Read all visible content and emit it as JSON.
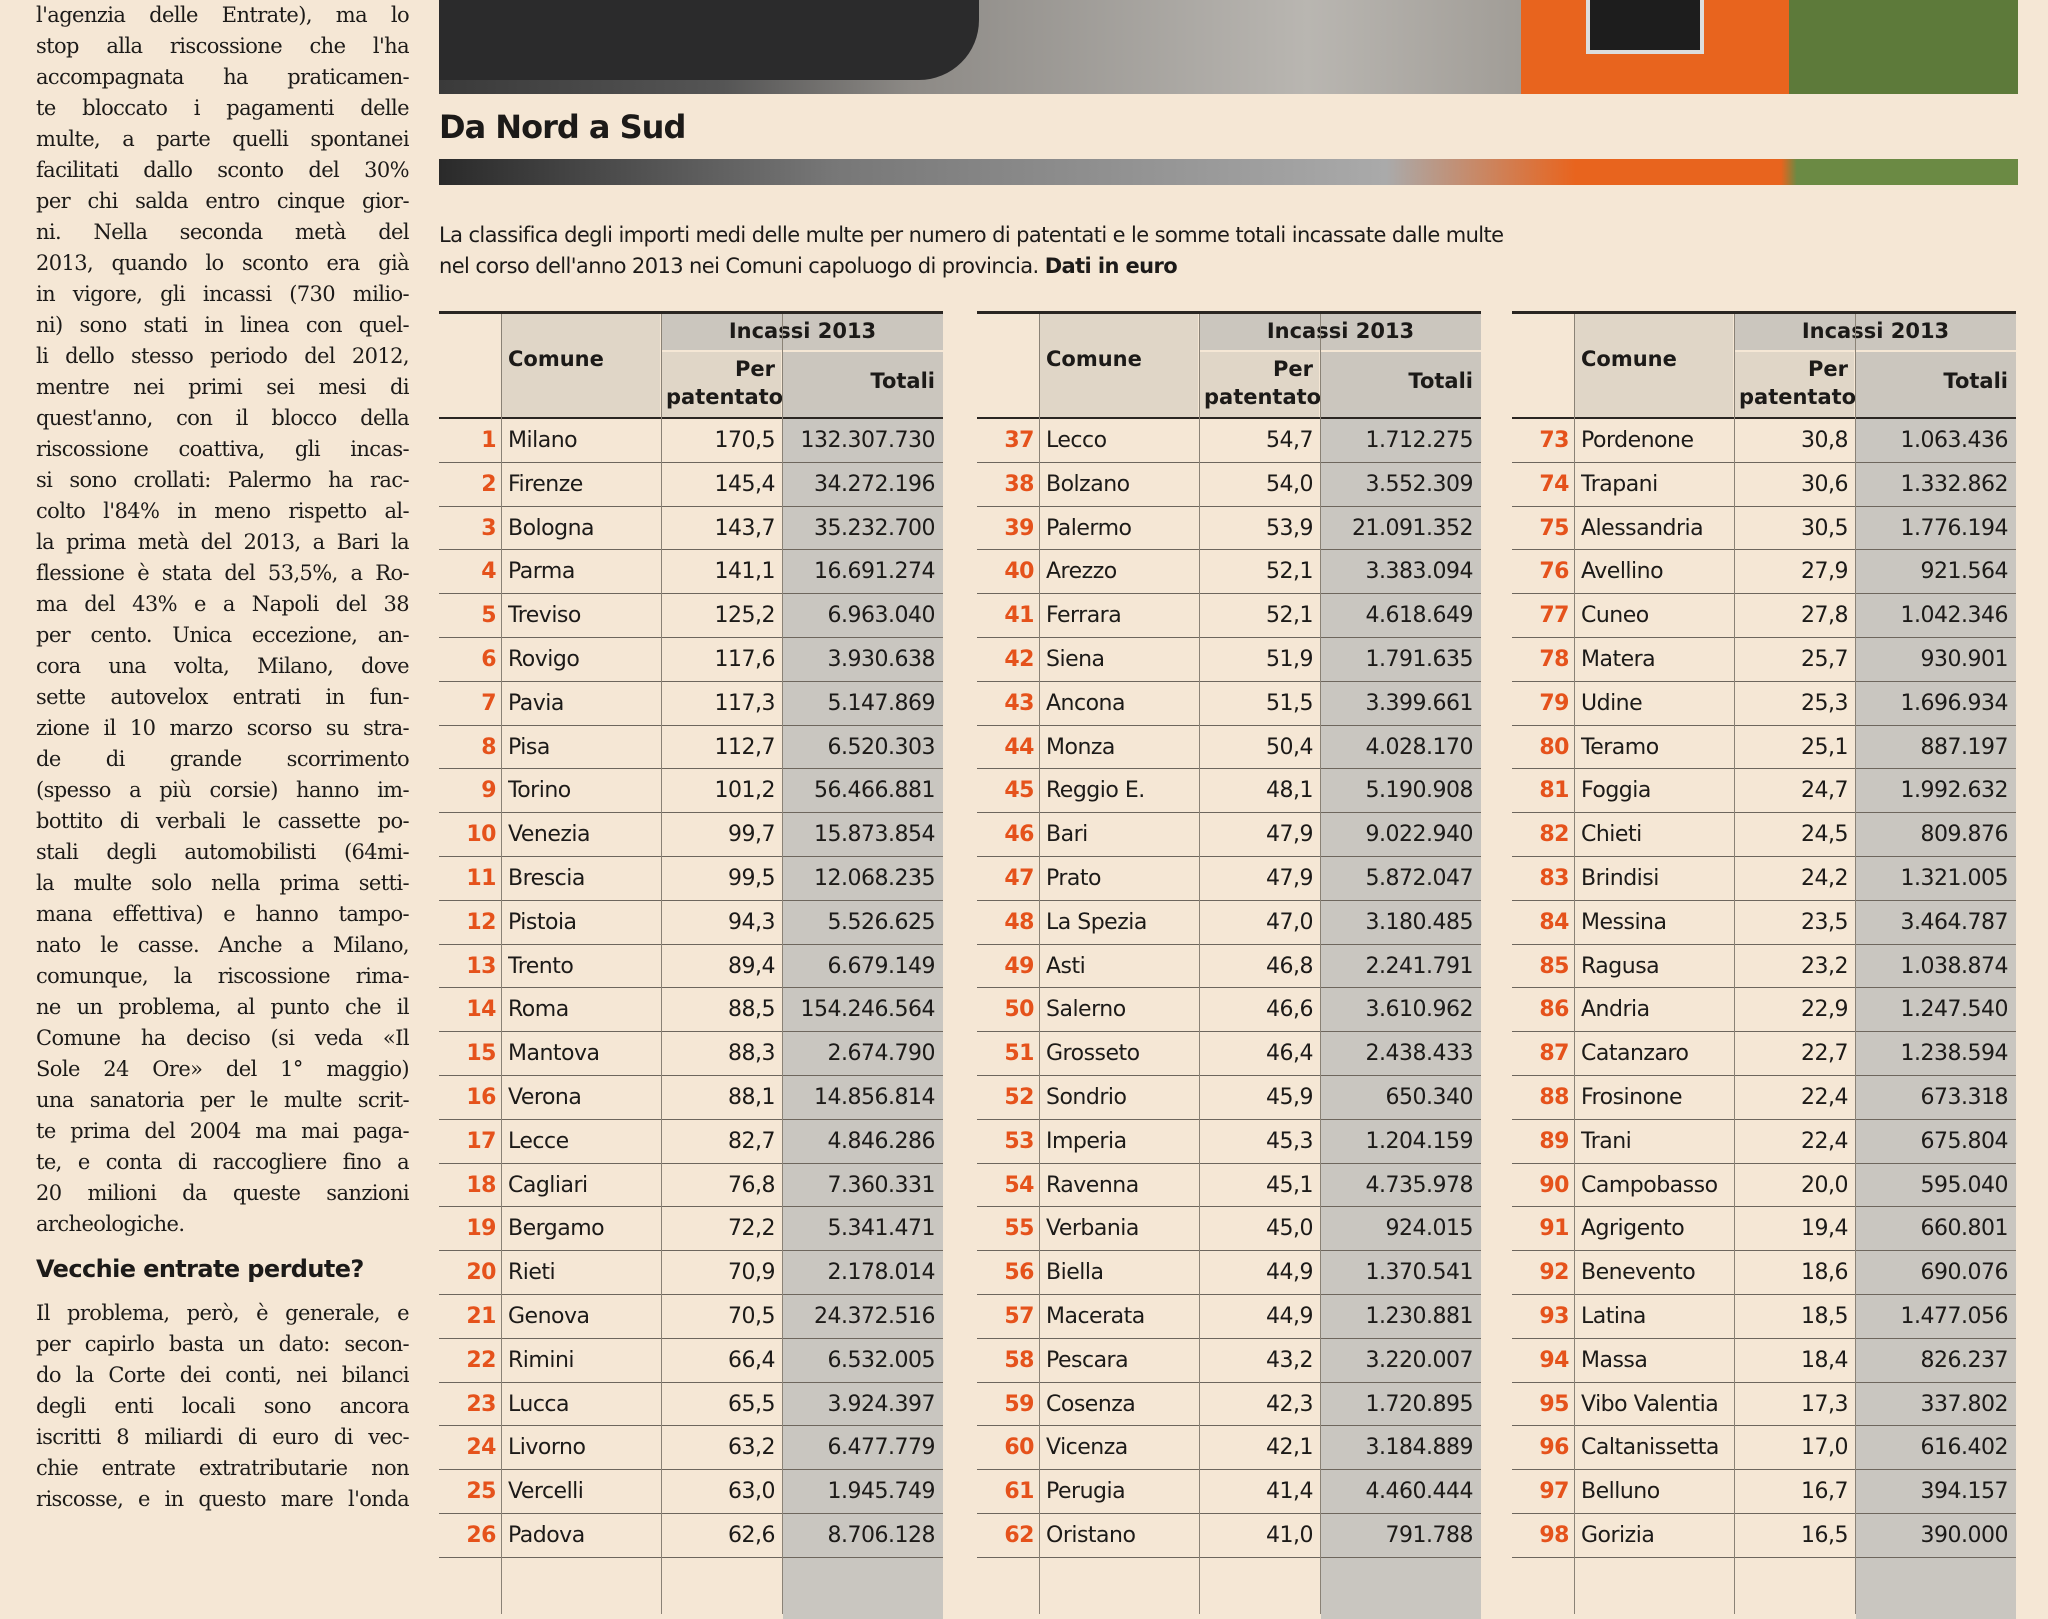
{
  "article": {
    "body": [
      "l'agenzia delle Entrate), ma lo",
      "stop alla riscossione che l'ha",
      "accompagnata ha praticamen-",
      "te bloccato i pagamenti delle",
      "multe, a parte quelli spontanei",
      "facilitati dallo sconto del 30%",
      "per chi salda entro cinque gior-",
      "ni. Nella seconda metà del",
      "2013, quando lo sconto era già",
      "in vigore, gli incassi (730 milio-",
      "ni) sono stati in linea con quel-",
      "li dello stesso periodo del 2012,",
      "mentre nei primi sei mesi di",
      "quest'anno, con il blocco della",
      "riscossione coattiva, gli incas-",
      "si sono crollati: Palermo ha rac-",
      "colto l'84% in meno rispetto al-",
      "la prima metà del 2013, a Bari la",
      "flessione è stata del 53,5%, a Ro-",
      "ma del 43% e a Napoli del 38",
      "per cento. Unica eccezione, an-",
      "cora una volta, Milano, dove",
      "sette autovelox entrati in fun-",
      "zione il 10 marzo scorso su stra-",
      "de di grande scorrimento",
      "(spesso a più corsie) hanno im-",
      "bottito di verbali le cassette po-",
      "stali degli automobilisti (64mi-",
      "la multe solo nella prima setti-",
      "mana effettiva) e hanno tampo-",
      "nato le casse. Anche a Milano,",
      "comunque, la riscossione rima-",
      "ne un problema, al punto che il",
      "Comune ha deciso (si veda «Il",
      "Sole 24 Ore» del 1° maggio)",
      "una sanatoria per le multe scrit-",
      "te prima del 2004 ma mai paga-",
      "te, e conta di raccogliere fino a",
      "20 milioni da queste sanzioni",
      "archeologiche."
    ],
    "subheading": "Vecchie entrate perdute?",
    "body2": [
      "Il problema, però, è generale, e",
      "per capirlo basta un dato: secon-",
      "do la Corte dei conti, nei bilanci",
      "degli enti locali sono ancora",
      "iscritti 8 miliardi di euro di vec-",
      "chie entrate extratributarie non",
      "riscosse, e in questo mare l'onda"
    ]
  },
  "infographic": {
    "title": "Da Nord a Sud",
    "description": [
      "La classifica degli importi medi delle multe per numero di patentati e le somme totali incassate dalle multe",
      "nel corso dell'anno 2013 nei Comuni capoluogo di provincia."
    ],
    "description_bold": "Dati in euro",
    "columns": {
      "comune": "Comune",
      "group": "Incassi 2013",
      "per_patentato": "Per patentato",
      "totali": "Totali"
    },
    "tables": [
      {
        "rows": [
          [
            1,
            "Milano",
            "170,5",
            "132.307.730"
          ],
          [
            2,
            "Firenze",
            "145,4",
            "34.272.196"
          ],
          [
            3,
            "Bologna",
            "143,7",
            "35.232.700"
          ],
          [
            4,
            "Parma",
            "141,1",
            "16.691.274"
          ],
          [
            5,
            "Treviso",
            "125,2",
            "6.963.040"
          ],
          [
            6,
            "Rovigo",
            "117,6",
            "3.930.638"
          ],
          [
            7,
            "Pavia",
            "117,3",
            "5.147.869"
          ],
          [
            8,
            "Pisa",
            "112,7",
            "6.520.303"
          ],
          [
            9,
            "Torino",
            "101,2",
            "56.466.881"
          ],
          [
            10,
            "Venezia",
            "99,7",
            "15.873.854"
          ],
          [
            11,
            "Brescia",
            "99,5",
            "12.068.235"
          ],
          [
            12,
            "Pistoia",
            "94,3",
            "5.526.625"
          ],
          [
            13,
            "Trento",
            "89,4",
            "6.679.149"
          ],
          [
            14,
            "Roma",
            "88,5",
            "154.246.564"
          ],
          [
            15,
            "Mantova",
            "88,3",
            "2.674.790"
          ],
          [
            16,
            "Verona",
            "88,1",
            "14.856.814"
          ],
          [
            17,
            "Lecce",
            "82,7",
            "4.846.286"
          ],
          [
            18,
            "Cagliari",
            "76,8",
            "7.360.331"
          ],
          [
            19,
            "Bergamo",
            "72,2",
            "5.341.471"
          ],
          [
            20,
            "Rieti",
            "70,9",
            "2.178.014"
          ],
          [
            21,
            "Genova",
            "70,5",
            "24.372.516"
          ],
          [
            22,
            "Rimini",
            "66,4",
            "6.532.005"
          ],
          [
            23,
            "Lucca",
            "65,5",
            "3.924.397"
          ],
          [
            24,
            "Livorno",
            "63,2",
            "6.477.779"
          ],
          [
            25,
            "Vercelli",
            "63,0",
            "1.945.749"
          ],
          [
            26,
            "Padova",
            "62,6",
            "8.706.128"
          ]
        ]
      },
      {
        "rows": [
          [
            37,
            "Lecco",
            "54,7",
            "1.712.275"
          ],
          [
            38,
            "Bolzano",
            "54,0",
            "3.552.309"
          ],
          [
            39,
            "Palermo",
            "53,9",
            "21.091.352"
          ],
          [
            40,
            "Arezzo",
            "52,1",
            "3.383.094"
          ],
          [
            41,
            "Ferrara",
            "52,1",
            "4.618.649"
          ],
          [
            42,
            "Siena",
            "51,9",
            "1.791.635"
          ],
          [
            43,
            "Ancona",
            "51,5",
            "3.399.661"
          ],
          [
            44,
            "Monza",
            "50,4",
            "4.028.170"
          ],
          [
            45,
            "Reggio E.",
            "48,1",
            "5.190.908"
          ],
          [
            46,
            "Bari",
            "47,9",
            "9.022.940"
          ],
          [
            47,
            "Prato",
            "47,9",
            "5.872.047"
          ],
          [
            48,
            "La Spezia",
            "47,0",
            "3.180.485"
          ],
          [
            49,
            "Asti",
            "46,8",
            "2.241.791"
          ],
          [
            50,
            "Salerno",
            "46,6",
            "3.610.962"
          ],
          [
            51,
            "Grosseto",
            "46,4",
            "2.438.433"
          ],
          [
            52,
            "Sondrio",
            "45,9",
            "650.340"
          ],
          [
            53,
            "Imperia",
            "45,3",
            "1.204.159"
          ],
          [
            54,
            "Ravenna",
            "45,1",
            "4.735.978"
          ],
          [
            55,
            "Verbania",
            "45,0",
            "924.015"
          ],
          [
            56,
            "Biella",
            "44,9",
            "1.370.541"
          ],
          [
            57,
            "Macerata",
            "44,9",
            "1.230.881"
          ],
          [
            58,
            "Pescara",
            "43,2",
            "3.220.007"
          ],
          [
            59,
            "Cosenza",
            "42,3",
            "1.720.895"
          ],
          [
            60,
            "Vicenza",
            "42,1",
            "3.184.889"
          ],
          [
            61,
            "Perugia",
            "41,4",
            "4.460.444"
          ],
          [
            62,
            "Oristano",
            "41,0",
            "791.788"
          ]
        ]
      },
      {
        "rows": [
          [
            73,
            "Pordenone",
            "30,8",
            "1.063.436"
          ],
          [
            74,
            "Trapani",
            "30,6",
            "1.332.862"
          ],
          [
            75,
            "Alessandria",
            "30,5",
            "1.776.194"
          ],
          [
            76,
            "Avellino",
            "27,9",
            "921.564"
          ],
          [
            77,
            "Cuneo",
            "27,8",
            "1.042.346"
          ],
          [
            78,
            "Matera",
            "25,7",
            "930.901"
          ],
          [
            79,
            "Udine",
            "25,3",
            "1.696.934"
          ],
          [
            80,
            "Teramo",
            "25,1",
            "887.197"
          ],
          [
            81,
            "Foggia",
            "24,7",
            "1.992.632"
          ],
          [
            82,
            "Chieti",
            "24,5",
            "809.876"
          ],
          [
            83,
            "Brindisi",
            "24,2",
            "1.321.005"
          ],
          [
            84,
            "Messina",
            "23,5",
            "3.464.787"
          ],
          [
            85,
            "Ragusa",
            "23,2",
            "1.038.874"
          ],
          [
            86,
            "Andria",
            "22,9",
            "1.247.540"
          ],
          [
            87,
            "Catanzaro",
            "22,7",
            "1.238.594"
          ],
          [
            88,
            "Frosinone",
            "22,4",
            "673.318"
          ],
          [
            89,
            "Trani",
            "22,4",
            "675.804"
          ],
          [
            90,
            "Campobasso",
            "20,0",
            "595.040"
          ],
          [
            91,
            "Agrigento",
            "19,4",
            "660.801"
          ],
          [
            92,
            "Benevento",
            "18,6",
            "690.076"
          ],
          [
            93,
            "Latina",
            "18,5",
            "1.477.056"
          ],
          [
            94,
            "Massa",
            "18,4",
            "826.237"
          ],
          [
            95,
            "Vibo Valentia",
            "17,3",
            "337.802"
          ],
          [
            96,
            "Caltanissetta",
            "17,0",
            "616.402"
          ],
          [
            97,
            "Belluno",
            "16,7",
            "394.157"
          ],
          [
            98,
            "Gorizia",
            "16,5",
            "390.000"
          ]
        ]
      }
    ]
  }
}
